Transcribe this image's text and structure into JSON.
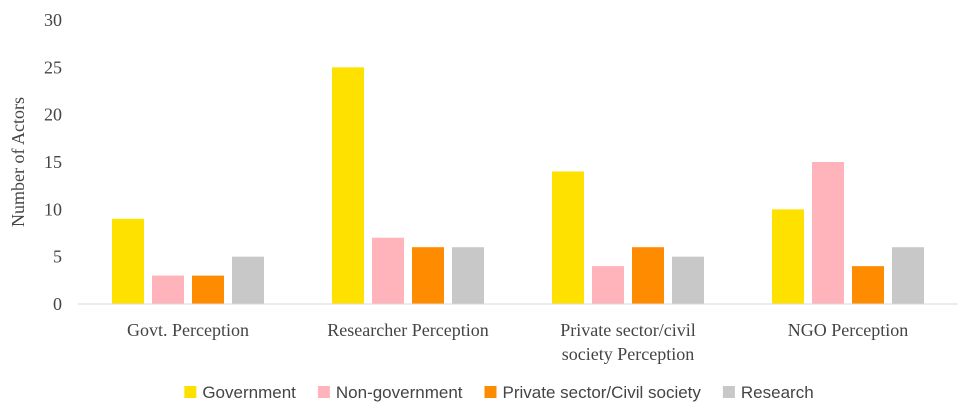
{
  "chart_data": {
    "type": "bar",
    "ylabel": "Number of Actors",
    "ylim": [
      0,
      30
    ],
    "yticks": [
      0,
      5,
      10,
      15,
      20,
      25,
      30
    ],
    "grid": false,
    "legend_position": "bottom",
    "categories": [
      [
        "Govt. Perception"
      ],
      [
        "Researcher Perception"
      ],
      [
        "Private sector/civil",
        "society Perception"
      ],
      [
        "NGO Perception"
      ]
    ],
    "series": [
      {
        "name": "Government",
        "color": "#FFE100",
        "values": [
          9,
          25,
          14,
          10
        ]
      },
      {
        "name": "Non-government",
        "color": "#FFB3BA",
        "values": [
          3,
          7,
          4,
          15
        ]
      },
      {
        "name": "Private sector/Civil society",
        "color": "#FF8C00",
        "values": [
          3,
          6,
          6,
          4
        ]
      },
      {
        "name": "Research",
        "color": "#C8C8C8",
        "values": [
          5,
          6,
          5,
          6
        ]
      }
    ]
  }
}
